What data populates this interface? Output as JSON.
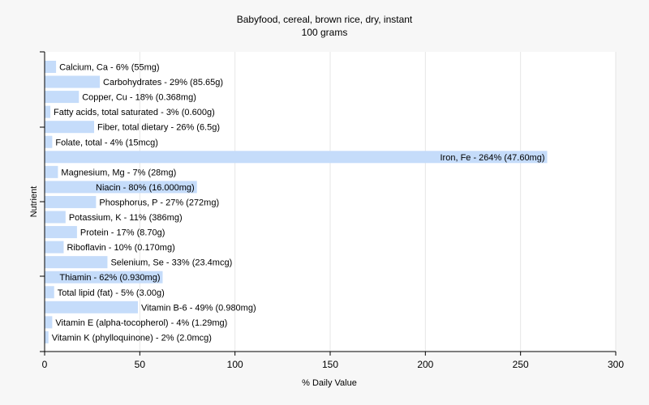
{
  "chart_data": {
    "type": "bar",
    "orientation": "horizontal",
    "title": "Babyfood, cereal, brown rice, dry, instant",
    "subtitle": "100 grams",
    "xlabel": "% Daily Value",
    "ylabel": "Nutrient",
    "xlim": [
      0,
      300
    ],
    "xticks": [
      0,
      50,
      100,
      150,
      200,
      250,
      300
    ],
    "grid": true,
    "bar_color": "#c5dcfa",
    "bars": [
      {
        "label": "Calcium, Ca - 6% (55mg)",
        "value": 6
      },
      {
        "label": "Carbohydrates - 29% (85.65g)",
        "value": 29
      },
      {
        "label": "Copper, Cu - 18% (0.368mg)",
        "value": 18
      },
      {
        "label": "Fatty acids, total saturated - 3% (0.600g)",
        "value": 3
      },
      {
        "label": "Fiber, total dietary - 26% (6.5g)",
        "value": 26
      },
      {
        "label": "Folate, total - 4% (15mcg)",
        "value": 4
      },
      {
        "label": "Iron, Fe - 264% (47.60mg)",
        "value": 264
      },
      {
        "label": "Magnesium, Mg - 7% (28mg)",
        "value": 7
      },
      {
        "label": "Niacin - 80% (16.000mg)",
        "value": 80
      },
      {
        "label": "Phosphorus, P - 27% (272mg)",
        "value": 27
      },
      {
        "label": "Potassium, K - 11% (386mg)",
        "value": 11
      },
      {
        "label": "Protein - 17% (8.70g)",
        "value": 17
      },
      {
        "label": "Riboflavin - 10% (0.170mg)",
        "value": 10
      },
      {
        "label": "Selenium, Se - 33% (23.4mcg)",
        "value": 33
      },
      {
        "label": "Thiamin - 62% (0.930mg)",
        "value": 62
      },
      {
        "label": "Total lipid (fat) - 5% (3.00g)",
        "value": 5
      },
      {
        "label": "Vitamin B-6 - 49% (0.980mg)",
        "value": 49
      },
      {
        "label": "Vitamin E (alpha-tocopherol) - 4% (1.29mg)",
        "value": 4
      },
      {
        "label": "Vitamin K (phylloquinone) - 2% (2.0mcg)",
        "value": 2
      }
    ]
  }
}
